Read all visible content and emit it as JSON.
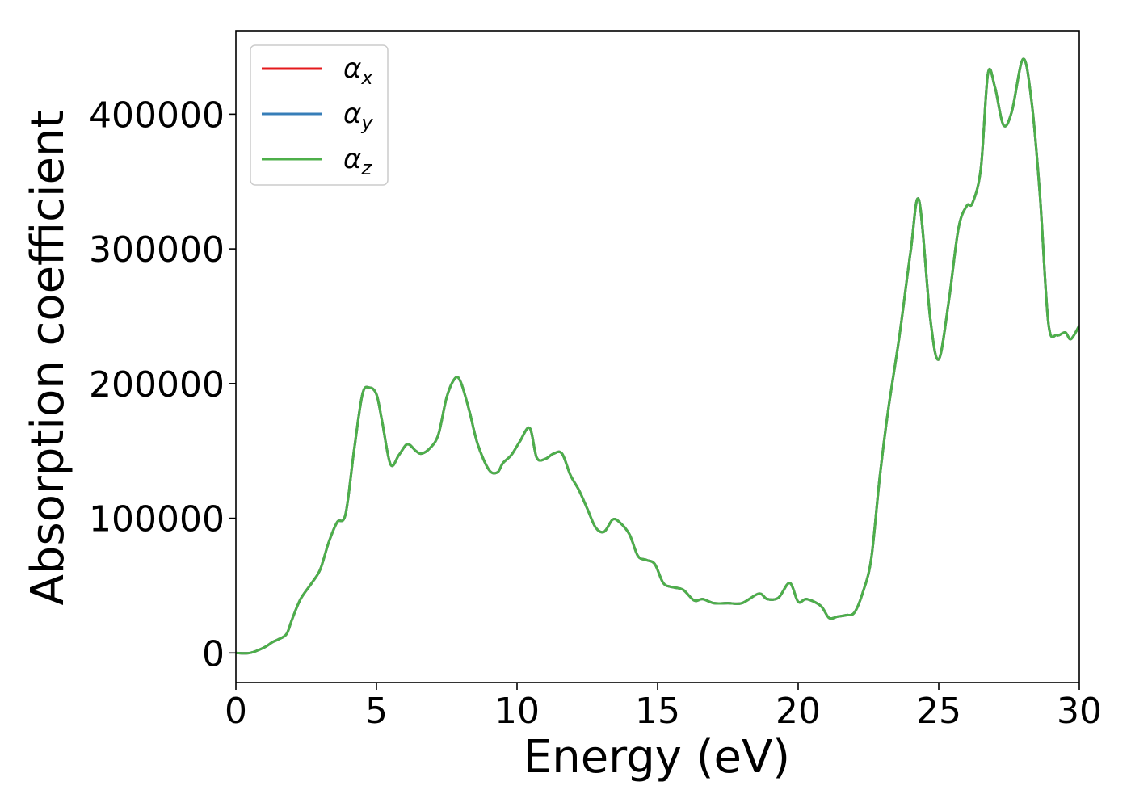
{
  "chart_data": {
    "type": "line",
    "xlabel": "Energy (eV)",
    "ylabel": "Absorption coefficient",
    "xlim": [
      0,
      30
    ],
    "ylim": [
      -22000,
      462000
    ],
    "xticks": [
      0,
      5,
      10,
      15,
      20,
      25,
      30
    ],
    "xtick_labels": [
      "0",
      "5",
      "10",
      "15",
      "20",
      "25",
      "30"
    ],
    "yticks": [
      0,
      100000,
      200000,
      300000,
      400000
    ],
    "ytick_labels": [
      "0",
      "100000",
      "200000",
      "300000",
      "400000"
    ],
    "grid": false,
    "legend_placement": "upper-left",
    "legend": [
      {
        "base": "α",
        "sub": "x",
        "color": "#e41a1c"
      },
      {
        "base": "α",
        "sub": "y",
        "color": "#377eb8"
      },
      {
        "base": "α",
        "sub": "z",
        "color": "#4daf4a"
      }
    ],
    "x": [
      0,
      0.5,
      1.0,
      1.3,
      1.5,
      1.8,
      2.0,
      2.3,
      2.7,
      3.0,
      3.3,
      3.6,
      3.9,
      4.2,
      4.5,
      4.75,
      5.0,
      5.2,
      5.5,
      5.8,
      6.1,
      6.4,
      6.6,
      6.9,
      7.2,
      7.5,
      7.8,
      8.0,
      8.3,
      8.6,
      9.0,
      9.3,
      9.5,
      9.8,
      10.1,
      10.45,
      10.7,
      11.0,
      11.3,
      11.6,
      11.9,
      12.2,
      12.5,
      12.8,
      13.1,
      13.4,
      13.65,
      14.0,
      14.3,
      14.6,
      14.9,
      15.2,
      15.5,
      15.9,
      16.3,
      16.6,
      17.0,
      17.5,
      18.0,
      18.6,
      18.9,
      19.3,
      19.7,
      20.0,
      20.3,
      20.8,
      21.1,
      21.4,
      21.7,
      22.0,
      22.3,
      22.6,
      22.9,
      23.2,
      23.6,
      24.0,
      24.3,
      24.7,
      25.0,
      25.35,
      25.7,
      26.0,
      26.2,
      26.5,
      26.75,
      27.0,
      27.3,
      27.6,
      28.0,
      28.3,
      28.6,
      28.9,
      29.2,
      29.5,
      29.7,
      30.0
    ],
    "series": [
      {
        "name": "α_x",
        "color": "#e41a1c",
        "values": [
          0,
          0,
          4000,
          8000,
          10000,
          14000,
          25000,
          40000,
          52000,
          62000,
          82000,
          97000,
          103000,
          150000,
          192000,
          197000,
          192000,
          172000,
          140000,
          147000,
          155000,
          150000,
          148000,
          152000,
          162000,
          190000,
          204000,
          201000,
          180000,
          155000,
          136000,
          134000,
          141000,
          147000,
          157000,
          167000,
          145000,
          144000,
          148000,
          148000,
          132000,
          121000,
          107000,
          93000,
          90000,
          99000,
          97000,
          88000,
          72000,
          69000,
          66000,
          52000,
          49000,
          47000,
          39000,
          40000,
          37000,
          37000,
          37000,
          44000,
          40000,
          41000,
          52000,
          38000,
          40000,
          35000,
          26000,
          27000,
          28000,
          30000,
          45000,
          70000,
          130000,
          180000,
          235000,
          298000,
          336000,
          248000,
          218000,
          260000,
          315000,
          332000,
          334000,
          360000,
          430000,
          420000,
          392000,
          402000,
          441000,
          410000,
          340000,
          245000,
          236000,
          238000,
          233000,
          243000
        ]
      },
      {
        "name": "α_y",
        "color": "#377eb8",
        "values": [
          0,
          0,
          4000,
          8000,
          10000,
          14000,
          25000,
          40000,
          52000,
          62000,
          82000,
          97000,
          103000,
          150000,
          192000,
          197000,
          192000,
          172000,
          140000,
          147000,
          155000,
          150000,
          148000,
          152000,
          162000,
          190000,
          204000,
          201000,
          180000,
          155000,
          136000,
          134000,
          141000,
          147000,
          157000,
          167000,
          145000,
          144000,
          148000,
          148000,
          132000,
          121000,
          107000,
          93000,
          90000,
          99000,
          97000,
          88000,
          72000,
          69000,
          66000,
          52000,
          49000,
          47000,
          39000,
          40000,
          37000,
          37000,
          37000,
          44000,
          40000,
          41000,
          52000,
          38000,
          40000,
          35000,
          26000,
          27000,
          28000,
          30000,
          45000,
          70000,
          130000,
          180000,
          235000,
          298000,
          336000,
          248000,
          218000,
          260000,
          315000,
          332000,
          334000,
          360000,
          430000,
          420000,
          392000,
          402000,
          441000,
          410000,
          340000,
          245000,
          236000,
          238000,
          233000,
          243000
        ]
      },
      {
        "name": "α_z",
        "color": "#4daf4a",
        "values": [
          0,
          0,
          4000,
          8000,
          10000,
          14000,
          25000,
          40000,
          52000,
          62000,
          82000,
          97000,
          103000,
          150000,
          192000,
          197000,
          192000,
          172000,
          140000,
          147000,
          155000,
          150000,
          148000,
          152000,
          162000,
          190000,
          204000,
          201000,
          180000,
          155000,
          136000,
          134000,
          141000,
          147000,
          157000,
          167000,
          145000,
          144000,
          148000,
          148000,
          132000,
          121000,
          107000,
          93000,
          90000,
          99000,
          97000,
          88000,
          72000,
          69000,
          66000,
          52000,
          49000,
          47000,
          39000,
          40000,
          37000,
          37000,
          37000,
          44000,
          40000,
          41000,
          52000,
          38000,
          40000,
          35000,
          26000,
          27000,
          28000,
          30000,
          45000,
          70000,
          130000,
          180000,
          235000,
          298000,
          336000,
          248000,
          218000,
          260000,
          315000,
          332000,
          334000,
          360000,
          430000,
          420000,
          392000,
          402000,
          441000,
          410000,
          340000,
          245000,
          236000,
          238000,
          233000,
          243000
        ]
      }
    ]
  }
}
